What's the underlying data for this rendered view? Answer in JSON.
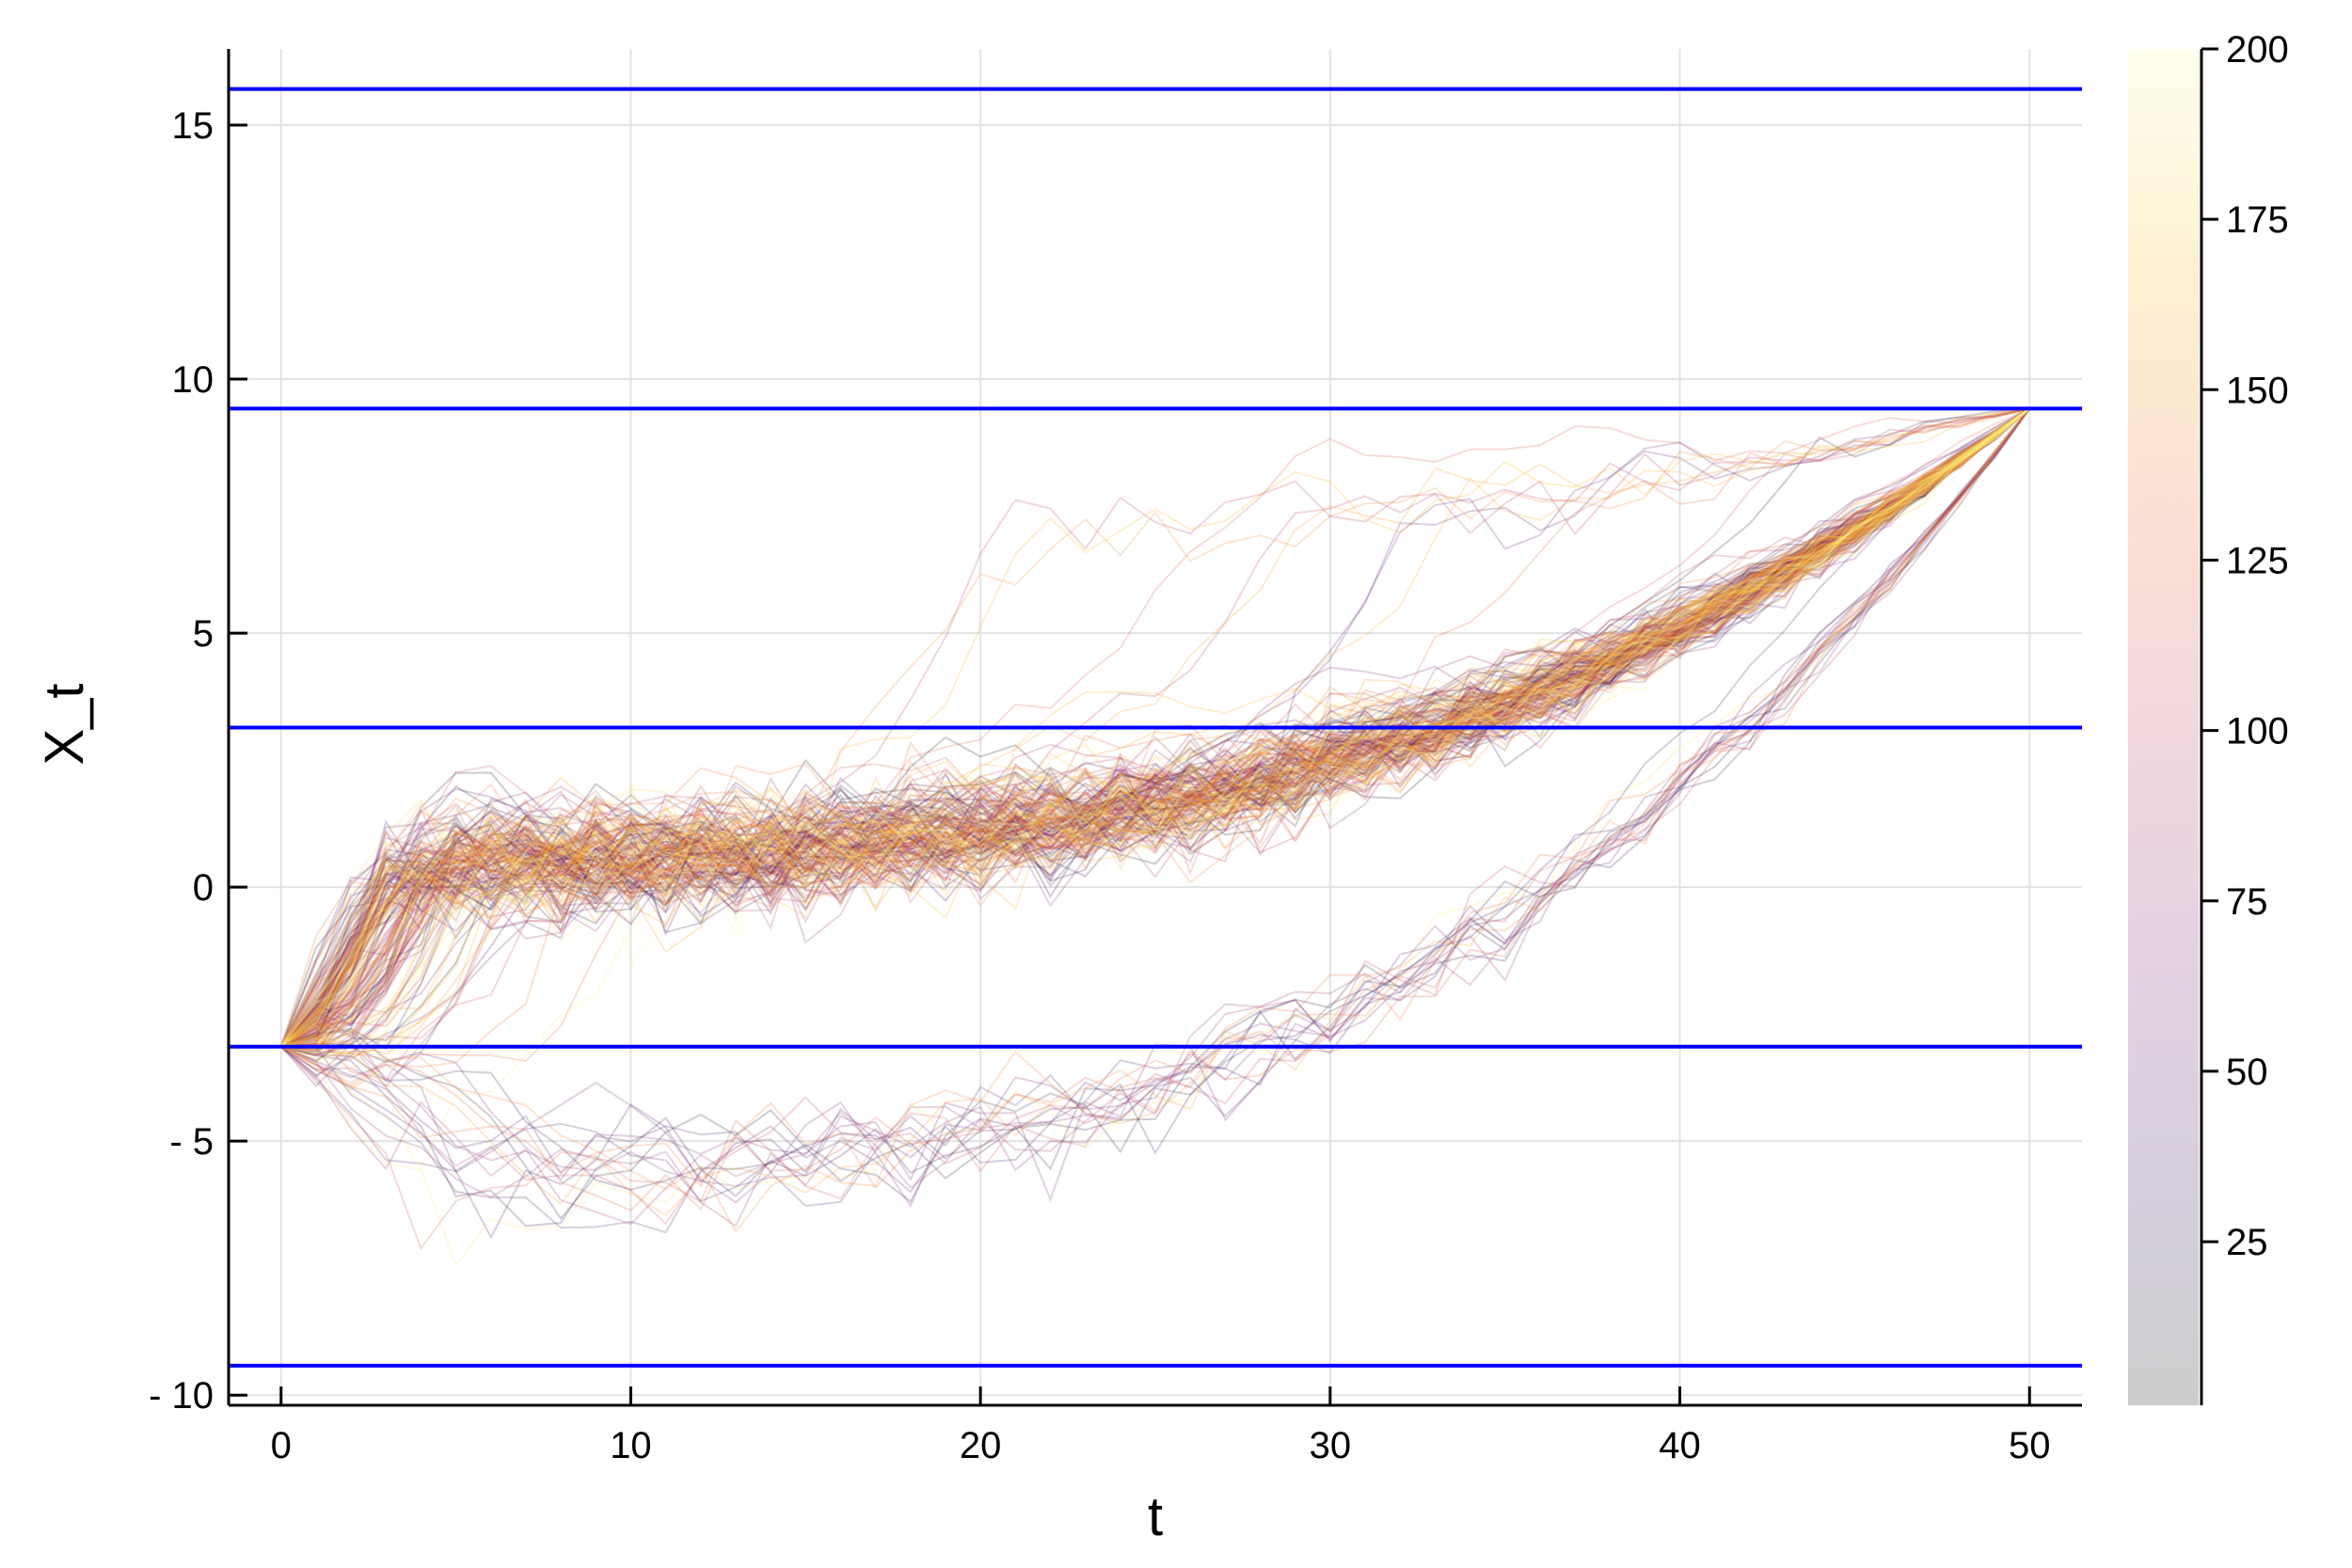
{
  "chart_data": {
    "type": "line",
    "xlabel": "t",
    "ylabel": "X_t",
    "xlim": [
      -1.5,
      51.5
    ],
    "ylim": [
      -10.2,
      16.5
    ],
    "x_ticks": [
      0,
      10,
      20,
      30,
      40,
      50
    ],
    "x_tick_labels": [
      "0",
      "10",
      "20",
      "30",
      "40",
      "50"
    ],
    "y_ticks": [
      -10,
      -5,
      0,
      5,
      10,
      15
    ],
    "y_tick_labels": [
      "- 10",
      "- 5",
      "0",
      "5",
      "10",
      "15"
    ],
    "grid": true,
    "legend": "none",
    "path_count": 200,
    "path_start": {
      "t": 0,
      "x": -3.14
    },
    "path_end": {
      "t": 50,
      "x": 9.42
    },
    "time_steps": 50,
    "horizontal_lines": {
      "color": "#0000ff",
      "values": [
        -9.42,
        -3.14,
        3.14,
        9.42,
        15.71
      ]
    },
    "colorbar": {
      "range": [
        1,
        200
      ],
      "ticks": [
        25,
        50,
        75,
        100,
        125,
        150,
        175,
        200
      ],
      "tick_labels": [
        "25",
        "50",
        "75",
        "100",
        "125",
        "150",
        "175",
        "200"
      ],
      "colors": [
        "#000000",
        "#300a5c",
        "#7a1b6d",
        "#bd3753",
        "#ed6925",
        "#fbb41a",
        "#fcffa4"
      ],
      "opacity": 0.2
    }
  }
}
